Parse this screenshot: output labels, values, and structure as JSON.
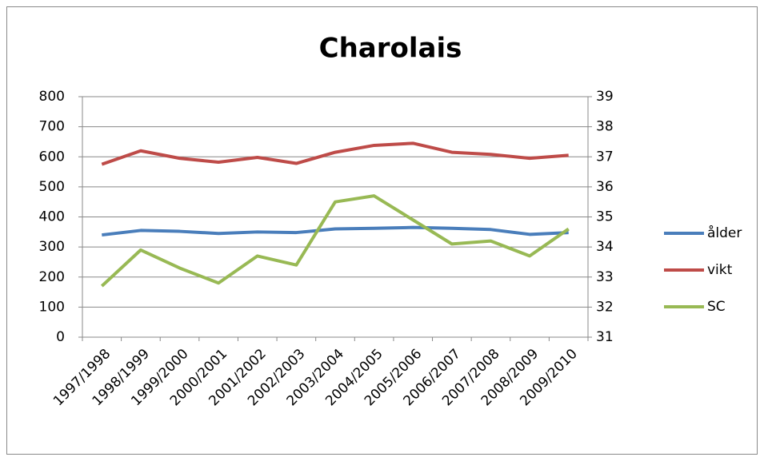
{
  "chart_data": {
    "type": "line",
    "title": "Charolais",
    "categories": [
      "1997/1998",
      "1998/1999",
      "1999/2000",
      "2000/2001",
      "2001/2002",
      "2002/2003",
      "2003/2004",
      "2004/2005",
      "2005/2006",
      "2006/2007",
      "2007/2008",
      "2008/2009",
      "2009/2010"
    ],
    "series": [
      {
        "name": "ålder",
        "color": "#4a7ebb",
        "values": [
          340,
          355,
          352,
          345,
          350,
          348,
          360,
          362,
          365,
          362,
          358,
          342,
          348
        ]
      },
      {
        "name": "vikt",
        "color": "#be4b48",
        "values": [
          575,
          620,
          595,
          582,
          598,
          578,
          615,
          638,
          645,
          615,
          608,
          595,
          605
        ]
      },
      {
        "name": "SC",
        "color": "#98b954",
        "axis": "y2",
        "values": [
          32.7,
          33.9,
          33.3,
          32.8,
          33.7,
          33.4,
          35.5,
          35.7,
          34.9,
          34.1,
          34.2,
          33.7,
          34.6
        ]
      }
    ],
    "ylim": [
      0,
      800
    ],
    "yticks": [
      0,
      100,
      200,
      300,
      400,
      500,
      600,
      700,
      800
    ],
    "y2lim": [
      31,
      39
    ],
    "y2ticks": [
      31,
      32,
      33,
      34,
      35,
      36,
      37,
      38,
      39
    ],
    "grid": true,
    "legend": "right"
  }
}
